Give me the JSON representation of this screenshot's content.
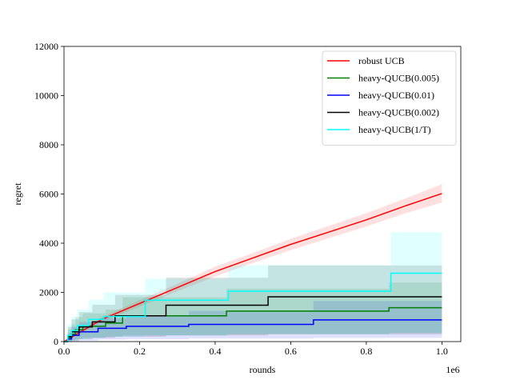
{
  "chart_data": {
    "type": "line",
    "title": "",
    "xlabel": "rounds",
    "ylabel": "regret",
    "x_offset_label": "1e6",
    "xlim": [
      0,
      1.05
    ],
    "ylim": [
      0,
      12000
    ],
    "xticks": [
      0.0,
      0.2,
      0.4,
      0.6,
      0.8,
      1.0
    ],
    "xtick_labels": [
      "0.0",
      "0.2",
      "0.4",
      "0.6",
      "0.8",
      "1.0"
    ],
    "yticks": [
      0,
      2000,
      4000,
      6000,
      8000,
      10000,
      12000
    ],
    "ytick_labels": [
      "0",
      "2000",
      "4000",
      "6000",
      "8000",
      "10000",
      "12000"
    ],
    "grid": false,
    "legend_position": "top-right",
    "series": [
      {
        "name": "robust UCB",
        "color": "#ff0000",
        "shape": "linear",
        "x": [
          0,
          0.1,
          0.2,
          0.3,
          0.4,
          0.5,
          0.6,
          0.7,
          0.8,
          0.9,
          1.0
        ],
        "y": [
          0,
          900,
          1550,
          2200,
          2850,
          3400,
          3950,
          4450,
          4950,
          5500,
          6020
        ],
        "lower": [
          0,
          800,
          1420,
          2050,
          2650,
          3200,
          3720,
          4200,
          4680,
          5200,
          5650
        ],
        "upper": [
          0,
          1000,
          1680,
          2350,
          3050,
          3600,
          4180,
          4700,
          5220,
          5800,
          6400
        ]
      },
      {
        "name": "heavy-QUCB(0.005)",
        "color": "#008000",
        "shape": "step",
        "x": [
          0,
          0.01,
          0.02,
          0.03,
          0.05,
          0.11,
          0.155,
          0.43,
          0.86,
          1.0
        ],
        "y": [
          0,
          150,
          300,
          480,
          620,
          750,
          1050,
          1240,
          1380,
          1380
        ],
        "lower": [
          0,
          0,
          50,
          100,
          150,
          200,
          250,
          300,
          350,
          350
        ],
        "upper": [
          0,
          500,
          700,
          1000,
          1150,
          1300,
          1800,
          2150,
          2400,
          2400
        ]
      },
      {
        "name": "heavy-QUCB(0.01)",
        "color": "#0000ff",
        "shape": "step",
        "x": [
          0,
          0.01,
          0.02,
          0.04,
          0.09,
          0.165,
          0.33,
          0.66,
          1.0
        ],
        "y": [
          0,
          100,
          250,
          400,
          540,
          620,
          700,
          880,
          880
        ],
        "lower": [
          0,
          0,
          0,
          40,
          80,
          100,
          120,
          150,
          150
        ],
        "upper": [
          0,
          350,
          600,
          800,
          950,
          1050,
          1250,
          1650,
          1650
        ]
      },
      {
        "name": "heavy-QUCB(0.002)",
        "color": "#000000",
        "shape": "step",
        "x": [
          0,
          0.01,
          0.02,
          0.04,
          0.075,
          0.135,
          0.27,
          0.54,
          1.0
        ],
        "y": [
          0,
          200,
          400,
          600,
          800,
          1050,
          1480,
          1820,
          1820
        ],
        "lower": [
          0,
          0,
          40,
          100,
          150,
          200,
          250,
          300,
          300
        ],
        "upper": [
          0,
          600,
          900,
          1200,
          1500,
          1900,
          2600,
          3100,
          3100
        ]
      },
      {
        "name": "heavy-QUCB(1/T)",
        "color": "#00ffff",
        "shape": "step",
        "x": [
          0,
          0.01,
          0.02,
          0.035,
          0.065,
          0.105,
          0.215,
          0.435,
          0.865,
          1.0
        ],
        "y": [
          0,
          250,
          450,
          650,
          900,
          1020,
          1680,
          2050,
          2780,
          2780
        ],
        "lower": [
          0,
          0,
          50,
          100,
          150,
          200,
          250,
          300,
          350,
          350
        ],
        "upper": [
          0,
          700,
          1000,
          1300,
          1700,
          2000,
          2550,
          3100,
          4450,
          4450
        ]
      }
    ]
  }
}
